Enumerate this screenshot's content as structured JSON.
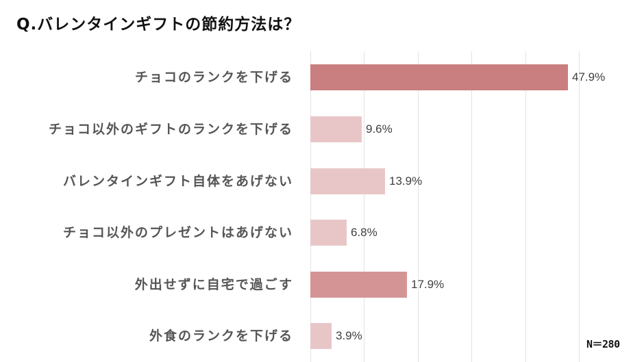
{
  "title": "Q.バレンタインギフトの節約方法は？",
  "note": "N＝280",
  "colors": {
    "bar_dark": "#c97e80",
    "bar_medium": "#d49496",
    "bar_light": "#e8c6c7",
    "gridline": "#e2e2e2",
    "label_text": "#555555",
    "value_text": "#404040"
  },
  "chart_data": {
    "type": "bar",
    "orientation": "horizontal",
    "title": "Q.バレンタインギフトの節約方法は？",
    "categories": [
      "チョコのランクを下げる",
      "チョコ以外のギフトのランクを下げる",
      "バレンタインギフト自体をあげない",
      "チョコ以外のプレゼントはあげない",
      "外出せずに自宅で過ごす",
      "外食のランクを下げる"
    ],
    "values": [
      47.9,
      9.6,
      13.9,
      6.8,
      17.9,
      3.9
    ],
    "value_labels": [
      "47.9%",
      "9.6%",
      "13.9%",
      "6.8%",
      "17.9%",
      "3.9%"
    ],
    "bar_colors": [
      "#c97e80",
      "#e8c6c7",
      "#e8c6c7",
      "#e8c6c7",
      "#d49496",
      "#e8c6c7"
    ],
    "unit": "%",
    "xlabel": "",
    "ylabel": "",
    "xlim": [
      0,
      60
    ],
    "grid": {
      "vertical": true,
      "step": 10
    },
    "legend": null,
    "annotations": [
      "N＝280"
    ]
  },
  "rows": [
    {
      "label": "チョコのランクを下げる",
      "value": 47.9,
      "value_label": "47.9%",
      "color": "#c97e80"
    },
    {
      "label": "チョコ以外のギフトのランクを下げる",
      "value": 9.6,
      "value_label": "9.6%",
      "color": "#e8c6c7"
    },
    {
      "label": "バレンタインギフト自体をあげない",
      "value": 13.9,
      "value_label": "13.9%",
      "color": "#e8c6c7"
    },
    {
      "label": "チョコ以外のプレゼントはあげない",
      "value": 6.8,
      "value_label": "6.8%",
      "color": "#e8c6c7"
    },
    {
      "label": "外出せずに自宅で過ごす",
      "value": 17.9,
      "value_label": "17.9%",
      "color": "#d49496"
    },
    {
      "label": "外食のランクを下げる",
      "value": 3.9,
      "value_label": "3.9%",
      "color": "#e8c6c7"
    }
  ]
}
